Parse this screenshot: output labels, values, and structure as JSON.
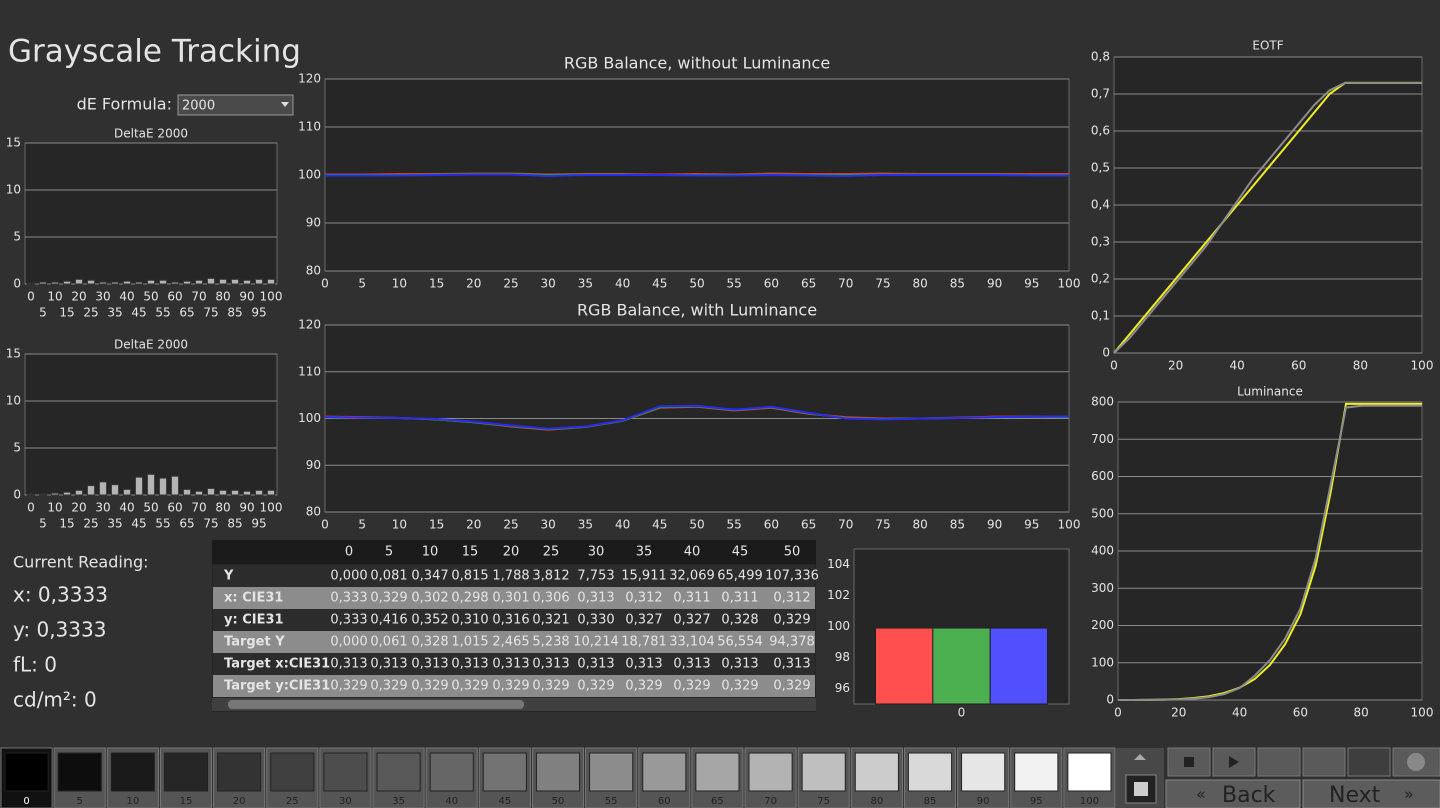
{
  "title": "Grayscale Tracking",
  "de_formula": {
    "label": "dE Formula:",
    "value": "2000"
  },
  "chart_data": [
    {
      "type": "bar",
      "title": "DeltaE 2000",
      "categories": [
        "0",
        "5",
        "10",
        "15",
        "20",
        "25",
        "30",
        "35",
        "40",
        "45",
        "50",
        "55",
        "60",
        "65",
        "70",
        "75",
        "80",
        "85",
        "90",
        "95",
        "100"
      ],
      "values": [
        0.1,
        0.2,
        0.2,
        0.3,
        0.5,
        0.4,
        0.2,
        0.2,
        0.3,
        0.2,
        0.4,
        0.4,
        0.2,
        0.3,
        0.4,
        0.6,
        0.5,
        0.5,
        0.4,
        0.5,
        0.5
      ],
      "color": "#b4b4b4",
      "ylim": [
        0,
        15
      ],
      "yticks": [
        0,
        5,
        10,
        15
      ],
      "grid": true
    },
    {
      "type": "bar",
      "title": "DeltaE 2000",
      "categories": [
        "0",
        "5",
        "10",
        "15",
        "20",
        "25",
        "30",
        "35",
        "40",
        "45",
        "50",
        "55",
        "60",
        "65",
        "70",
        "75",
        "80",
        "85",
        "90",
        "95",
        "100"
      ],
      "values": [
        0.1,
        0.1,
        0.2,
        0.3,
        0.5,
        1.0,
        1.4,
        1.1,
        0.6,
        1.9,
        2.2,
        1.8,
        2.0,
        0.6,
        0.4,
        0.7,
        0.5,
        0.5,
        0.4,
        0.5,
        0.5
      ],
      "color": "#b4b4b4",
      "ylim": [
        0,
        15
      ],
      "yticks": [
        0,
        5,
        10,
        15
      ],
      "grid": true
    },
    {
      "type": "line",
      "title": "RGB Balance, without Luminance",
      "x": [
        0,
        5,
        10,
        15,
        20,
        25,
        30,
        35,
        40,
        45,
        50,
        55,
        60,
        65,
        70,
        75,
        80,
        85,
        90,
        95,
        100
      ],
      "series": [
        {
          "color": "#e03030",
          "values": [
            100.1,
            100.1,
            100.2,
            100.2,
            100.3,
            100.3,
            100.1,
            100.2,
            100.2,
            100.1,
            100.2,
            100.1,
            100.3,
            100.2,
            100.2,
            100.3,
            100.2,
            100.2,
            100.2,
            100.2,
            100.2
          ]
        },
        {
          "color": "#30a030",
          "values": [
            100.0,
            100.0,
            100.0,
            100.1,
            100.2,
            100.2,
            100.0,
            100.1,
            100.1,
            100.0,
            100.0,
            100.0,
            100.1,
            100.0,
            100.0,
            100.1,
            100.1,
            100.1,
            100.1,
            100.0,
            100.0
          ]
        },
        {
          "color": "#2a2af0",
          "values": [
            99.9,
            99.9,
            99.9,
            100.0,
            100.1,
            100.1,
            99.8,
            100.0,
            100.0,
            100.0,
            99.9,
            99.9,
            100.0,
            99.9,
            99.8,
            100.0,
            100.0,
            100.0,
            100.0,
            99.9,
            99.9
          ]
        }
      ],
      "xlim": [
        0,
        100
      ],
      "xticks": [
        0,
        5,
        10,
        15,
        20,
        25,
        30,
        35,
        40,
        45,
        50,
        55,
        60,
        65,
        70,
        75,
        80,
        85,
        90,
        95,
        100
      ],
      "ylim": [
        80,
        120
      ],
      "yticks": [
        80,
        90,
        100,
        110,
        120
      ],
      "grid": true
    },
    {
      "type": "line",
      "title": "RGB Balance, with Luminance",
      "x": [
        0,
        5,
        10,
        15,
        20,
        25,
        30,
        35,
        40,
        45,
        50,
        55,
        60,
        65,
        70,
        75,
        80,
        85,
        90,
        95,
        100
      ],
      "series": [
        {
          "color": "#e03030",
          "values": [
            100.4,
            100.3,
            100.1,
            99.8,
            99.2,
            98.3,
            97.6,
            98.2,
            99.5,
            102.3,
            102.5,
            101.7,
            102.3,
            101.0,
            100.3,
            100.0,
            100.0,
            100.2,
            100.4,
            100.4,
            100.3
          ]
        },
        {
          "color": "#30a030",
          "values": [
            100.3,
            100.2,
            100.1,
            99.8,
            99.2,
            98.4,
            97.7,
            98.2,
            99.5,
            102.4,
            102.6,
            101.8,
            102.4,
            101.1,
            100.1,
            99.9,
            100.0,
            100.1,
            100.3,
            100.4,
            100.3
          ]
        },
        {
          "color": "#2a2af0",
          "values": [
            100.3,
            100.2,
            100.1,
            99.9,
            99.3,
            98.5,
            97.8,
            98.3,
            99.6,
            102.6,
            102.7,
            101.9,
            102.5,
            101.2,
            100.0,
            99.8,
            100.0,
            100.1,
            100.3,
            100.4,
            100.4
          ]
        }
      ],
      "xlim": [
        0,
        100
      ],
      "xticks": [
        0,
        5,
        10,
        15,
        20,
        25,
        30,
        35,
        40,
        45,
        50,
        55,
        60,
        65,
        70,
        75,
        80,
        85,
        90,
        95,
        100
      ],
      "ylim": [
        80,
        120
      ],
      "yticks": [
        80,
        90,
        100,
        110,
        120
      ],
      "grid": true
    },
    {
      "type": "line",
      "title": "EOTF",
      "x": [
        0,
        5,
        10,
        15,
        20,
        25,
        30,
        35,
        40,
        45,
        50,
        55,
        60,
        65,
        70,
        75,
        80,
        85,
        90,
        95,
        100
      ],
      "series": [
        {
          "color": "#f0f020",
          "values": [
            0,
            0.05,
            0.1,
            0.15,
            0.2,
            0.25,
            0.3,
            0.35,
            0.4,
            0.45,
            0.5,
            0.55,
            0.6,
            0.65,
            0.7,
            0.73,
            0.73,
            0.73,
            0.73,
            0.73,
            0.73
          ]
        },
        {
          "color": "#8c8c8c",
          "values": [
            0,
            0.04,
            0.09,
            0.14,
            0.19,
            0.24,
            0.29,
            0.35,
            0.41,
            0.47,
            0.52,
            0.57,
            0.62,
            0.67,
            0.71,
            0.73,
            0.73,
            0.73,
            0.73,
            0.73,
            0.73
          ]
        }
      ],
      "xlim": [
        0,
        100
      ],
      "xticks": [
        0,
        20,
        40,
        60,
        80,
        100
      ],
      "ylim": [
        0,
        0.8
      ],
      "yticks": [
        0,
        {
          "value": 0.1,
          "label": "0,1"
        },
        {
          "value": 0.2,
          "label": "0,2"
        },
        {
          "value": 0.3,
          "label": "0,3"
        },
        {
          "value": 0.4,
          "label": "0,4"
        },
        {
          "value": 0.5,
          "label": "0,5"
        },
        {
          "value": 0.6,
          "label": "0,6"
        },
        {
          "value": 0.7,
          "label": "0,7"
        },
        {
          "value": 0.8,
          "label": "0,8"
        }
      ],
      "grid": true
    },
    {
      "type": "line",
      "title": "Luminance",
      "x": [
        0,
        5,
        10,
        15,
        20,
        25,
        30,
        35,
        40,
        45,
        50,
        55,
        60,
        65,
        70,
        75,
        80,
        85,
        90,
        95,
        100
      ],
      "series": [
        {
          "color": "#f0f020",
          "values": [
            0,
            0.061,
            0.328,
            1.015,
            2.465,
            5.238,
            10.214,
            18.781,
            33.104,
            56.554,
            94.378,
            150,
            230,
            360,
            560,
            795,
            795,
            795,
            795,
            795,
            795
          ]
        },
        {
          "color": "#8c8c8c",
          "values": [
            0,
            0.081,
            0.347,
            0.815,
            1.788,
            3.812,
            7.753,
            15.911,
            32.069,
            65.499,
            107.336,
            165,
            245,
            380,
            580,
            785,
            790,
            790,
            790,
            790,
            790
          ]
        }
      ],
      "xlim": [
        0,
        100
      ],
      "xticks": [
        0,
        20,
        40,
        60,
        80,
        100
      ],
      "ylim": [
        0,
        800
      ],
      "yticks": [
        0,
        100,
        200,
        300,
        400,
        500,
        600,
        700,
        800
      ],
      "grid": true
    },
    {
      "type": "bar",
      "categories": [
        "0"
      ],
      "series": [
        {
          "color": "#ff4f4f",
          "values": [
            99.9
          ]
        },
        {
          "color": "#4caf50",
          "values": [
            99.9
          ]
        },
        {
          "color": "#5050ff",
          "values": [
            99.9
          ]
        }
      ],
      "ylim": [
        95,
        105
      ],
      "yticks": [
        96,
        98,
        100,
        102,
        104
      ],
      "grid": false
    }
  ],
  "table": {
    "columns": [
      "0",
      "5",
      "10",
      "15",
      "20",
      "25",
      "30",
      "35",
      "40",
      "45",
      "50"
    ],
    "rows": [
      [
        "Y",
        "0,000",
        "0,081",
        "0,347",
        "0,815",
        "1,788",
        "3,812",
        "7,753",
        "15,911",
        "32,069",
        "65,499",
        "107,336"
      ],
      [
        "x: CIE31",
        "0,333",
        "0,329",
        "0,302",
        "0,298",
        "0,301",
        "0,306",
        "0,313",
        "0,312",
        "0,311",
        "0,311",
        "0,312"
      ],
      [
        "y: CIE31",
        "0,333",
        "0,416",
        "0,352",
        "0,310",
        "0,316",
        "0,321",
        "0,330",
        "0,327",
        "0,327",
        "0,328",
        "0,329"
      ],
      [
        "Target Y",
        "0,000",
        "0,061",
        "0,328",
        "1,015",
        "2,465",
        "5,238",
        "10,214",
        "18,781",
        "33,104",
        "56,554",
        "94,378"
      ],
      [
        "Target x:CIE31",
        "0,313",
        "0,313",
        "0,313",
        "0,313",
        "0,313",
        "0,313",
        "0,313",
        "0,313",
        "0,313",
        "0,313",
        "0,313"
      ],
      [
        "Target y:CIE31",
        "0,329",
        "0,329",
        "0,329",
        "0,329",
        "0,329",
        "0,329",
        "0,329",
        "0,329",
        "0,329",
        "0,329",
        "0,329"
      ]
    ]
  },
  "readings": {
    "heading": "Current Reading:",
    "lines": [
      "x: 0,3333",
      "y: 0,3333",
      "fL: 0",
      "cd/m²: 0"
    ]
  },
  "swatches": [
    "0",
    "5",
    "10",
    "15",
    "20",
    "25",
    "30",
    "35",
    "40",
    "45",
    "50",
    "55",
    "60",
    "65",
    "70",
    "75",
    "80",
    "85",
    "90",
    "95",
    "100"
  ],
  "buttons": {
    "back": "Back",
    "next": "Next"
  }
}
